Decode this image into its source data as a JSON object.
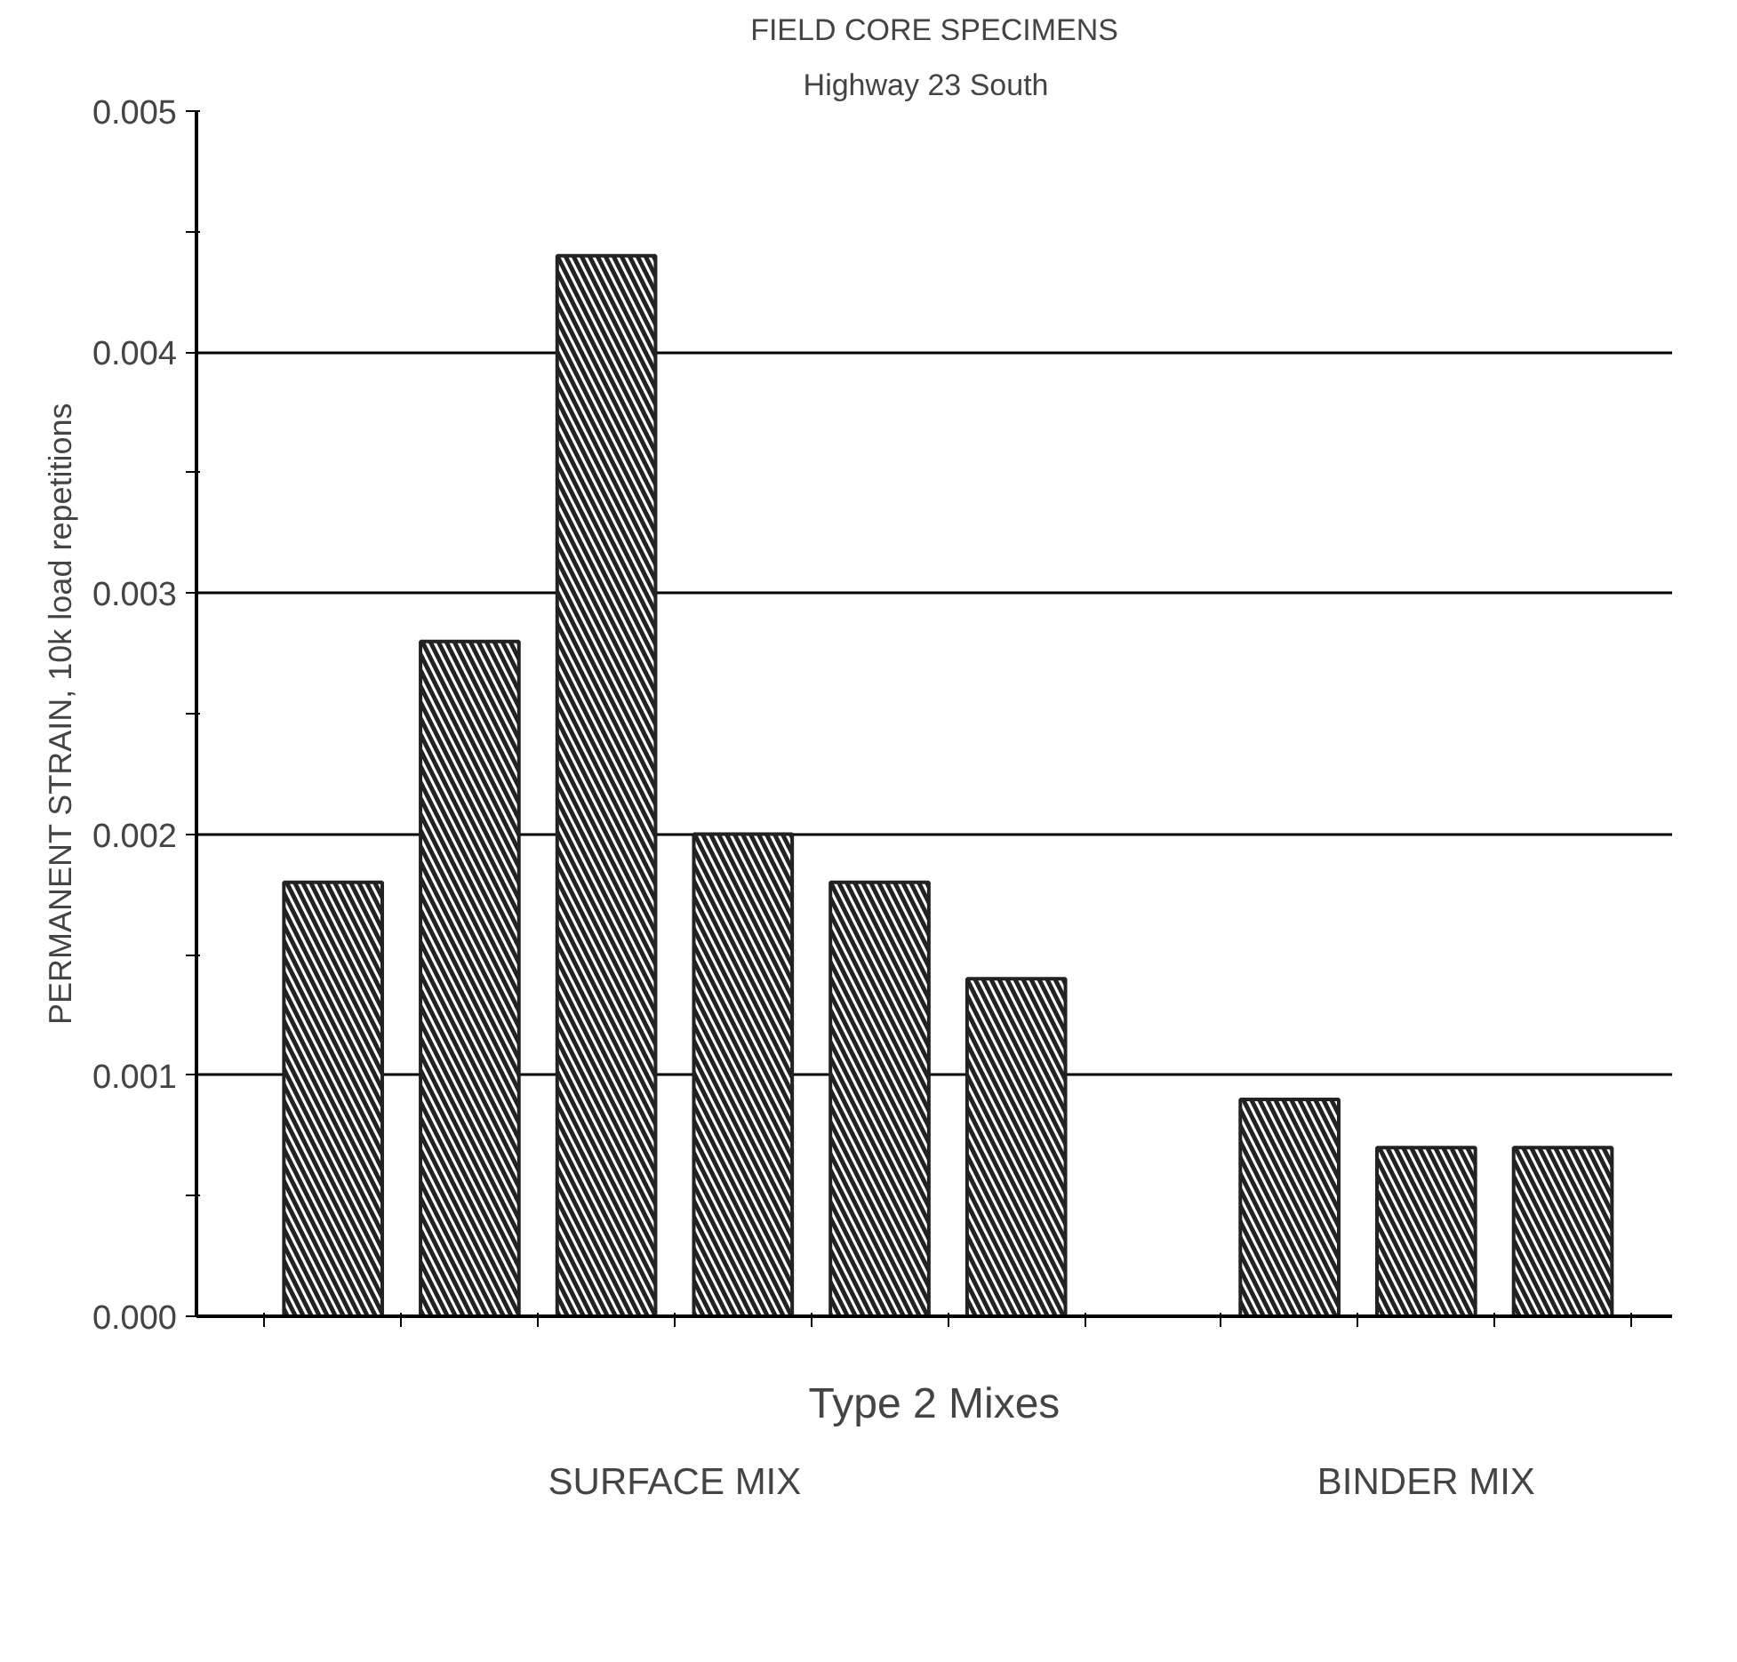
{
  "chart_data": {
    "type": "bar",
    "title": "FIELD CORE SPECIMENS",
    "subtitle": "Highway  23  South",
    "xlabel": "Type 2 Mixes",
    "ylabel": "PERMANENT STRAIN, 10k load repetitions",
    "categories": [
      null,
      null,
      null,
      null,
      null,
      null,
      null,
      null,
      null,
      null
    ],
    "values": [
      0.0018,
      0.0028,
      0.0044,
      0.002,
      0.0018,
      0.0014,
      null,
      0.0009,
      0.0007,
      0.0007
    ],
    "color": "#222222",
    "annotations": [
      "SURFACE MIX",
      "BINDER MIX"
    ],
    "ylim": [
      0,
      0.005
    ],
    "yticks": [
      {
        "value": 0,
        "label": "0.000"
      },
      {
        "value": 0.0005,
        "label": null
      },
      {
        "value": 0.001,
        "label": "0.001"
      },
      {
        "value": 0.0015,
        "label": null
      },
      {
        "value": 0.002,
        "label": "0.002"
      },
      {
        "value": 0.0025,
        "label": null
      },
      {
        "value": 0.003,
        "label": "0.003"
      },
      {
        "value": 0.0035,
        "label": null
      },
      {
        "value": 0.004,
        "label": "0.004"
      },
      {
        "value": 0.0045,
        "label": null
      },
      {
        "value": 0.005,
        "label": "0.005"
      }
    ],
    "grid": "y"
  }
}
